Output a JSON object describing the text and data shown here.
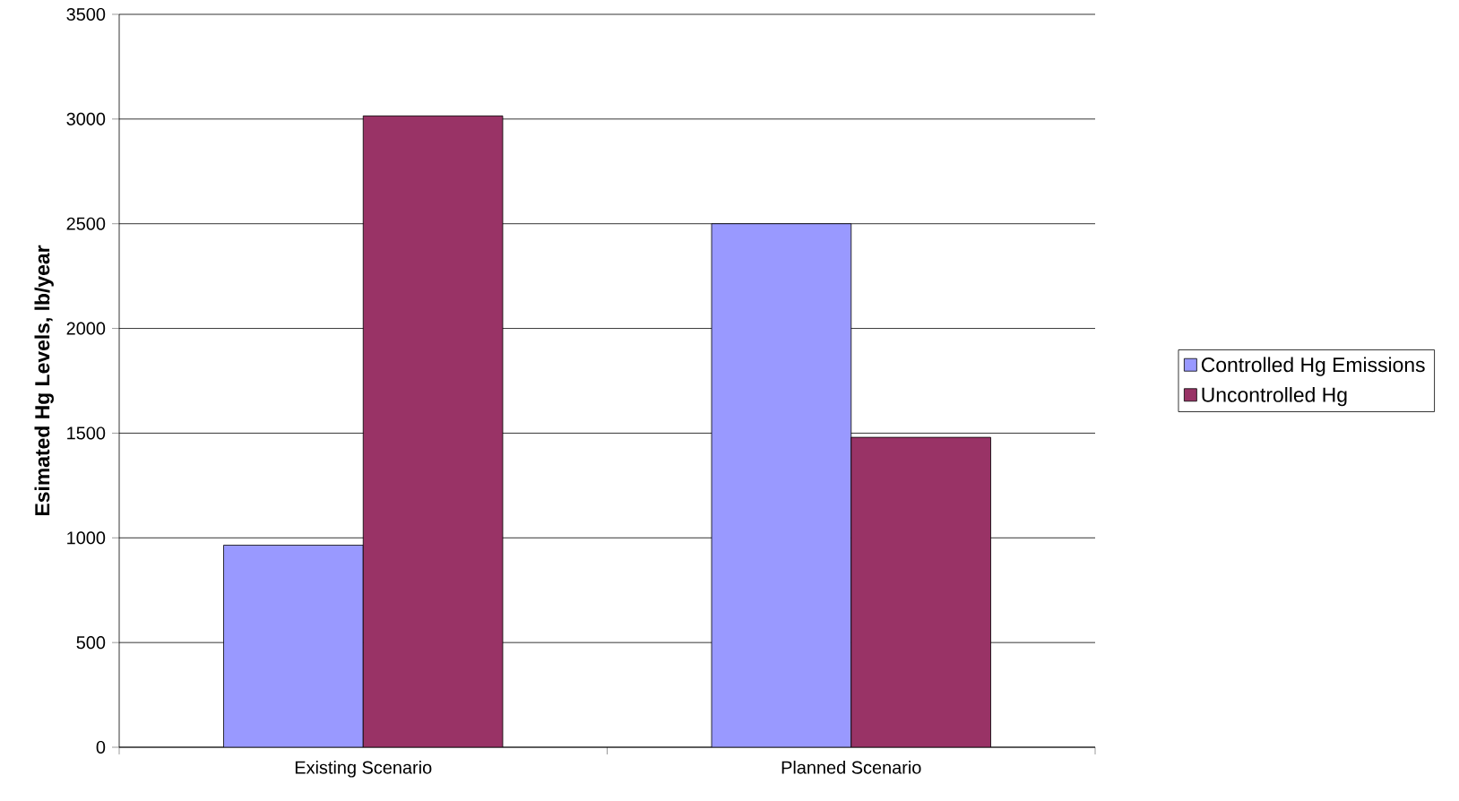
{
  "chart_data": {
    "type": "bar",
    "ylabel": "Esimated Hg Levels, lb/year",
    "categories": [
      "Existing Scenario",
      "Planned Scenario"
    ],
    "series": [
      {
        "name": "Controlled Hg Emissions",
        "color": "#9999ff",
        "values": [
          965,
          2500
        ]
      },
      {
        "name": "Uncontrolled Hg",
        "color": "#993366",
        "values": [
          3015,
          1480
        ]
      }
    ],
    "ylim": [
      0,
      3500
    ],
    "yticks": [
      0,
      500,
      1000,
      1500,
      2000,
      2500,
      3000,
      3500
    ],
    "grid": "y",
    "legend": "right"
  }
}
